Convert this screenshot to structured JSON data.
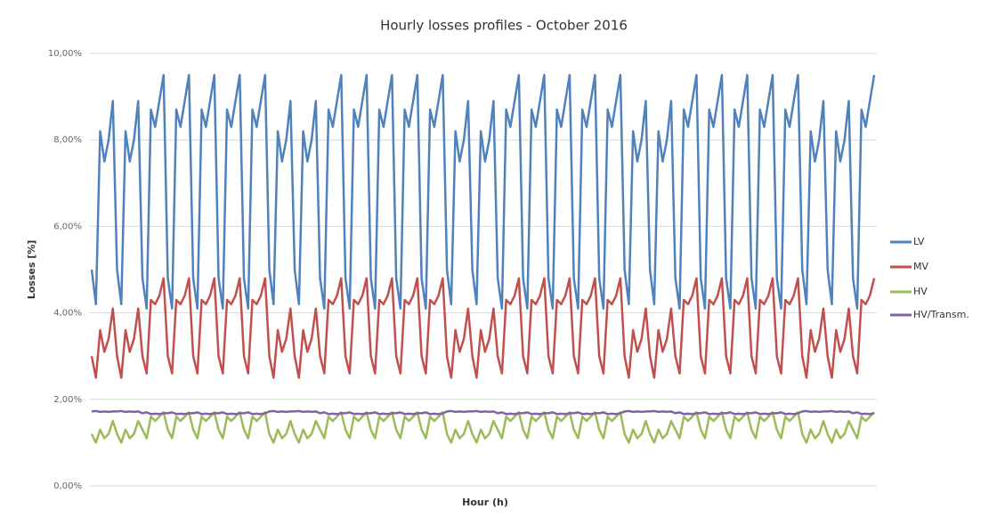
{
  "chart_data": {
    "type": "line",
    "title": "Hourly losses profiles - October 2016",
    "xlabel": "Hour (h)",
    "ylabel": "Losses [%]",
    "ylim": [
      0,
      10
    ],
    "yticks": [
      {
        "value": 0,
        "label": "0,00%"
      },
      {
        "value": 2,
        "label": "2,00%"
      },
      {
        "value": 4,
        "label": "4,00%"
      },
      {
        "value": 6,
        "label": "6,00%"
      },
      {
        "value": 8,
        "label": "8,00%"
      },
      {
        "value": 10,
        "label": "10,00%"
      }
    ],
    "grid": true,
    "legend": "right",
    "series": [
      {
        "name": "LV",
        "color": "#4f81bd",
        "values": [
          5.0,
          4.2,
          8.2,
          7.5,
          8.0,
          8.9,
          5.0,
          4.2,
          8.2,
          7.5,
          8.0,
          8.9,
          4.8,
          4.1,
          8.7,
          8.3,
          8.9,
          9.5,
          4.8,
          4.1,
          8.7,
          8.3,
          8.9,
          9.5,
          4.8,
          4.1,
          8.7,
          8.3,
          8.9,
          9.5,
          4.8,
          4.1,
          8.7,
          8.3,
          8.9,
          9.5,
          4.8,
          4.1,
          8.7,
          8.3,
          8.9,
          9.5,
          5.0,
          4.2,
          8.2,
          7.5,
          8.0,
          8.9,
          5.0,
          4.2,
          8.2,
          7.5,
          8.0,
          8.9,
          4.8,
          4.1,
          8.7,
          8.3,
          8.9,
          9.5,
          4.8,
          4.1,
          8.7,
          8.3,
          8.9,
          9.5,
          4.8,
          4.1,
          8.7,
          8.3,
          8.9,
          9.5,
          4.8,
          4.1,
          8.7,
          8.3,
          8.9,
          9.5,
          4.8,
          4.1,
          8.7,
          8.3,
          8.9,
          9.5,
          5.0,
          4.2,
          8.2,
          7.5,
          8.0,
          8.9,
          5.0,
          4.2,
          8.2,
          7.5,
          8.0,
          8.9,
          4.8,
          4.1,
          8.7,
          8.3,
          8.9,
          9.5,
          4.8,
          4.1,
          8.7,
          8.3,
          8.9,
          9.5,
          4.8,
          4.1,
          8.7,
          8.3,
          8.9,
          9.5,
          4.8,
          4.1,
          8.7,
          8.3,
          8.9,
          9.5,
          4.8,
          4.1,
          8.7,
          8.3,
          8.9,
          9.5,
          5.0,
          4.2,
          8.2,
          7.5,
          8.0,
          8.9,
          5.0,
          4.2,
          8.2,
          7.5,
          8.0,
          8.9,
          4.8,
          4.1,
          8.7,
          8.3,
          8.9,
          9.5,
          4.8,
          4.1,
          8.7,
          8.3,
          8.9,
          9.5,
          4.8,
          4.1,
          8.7,
          8.3,
          8.9,
          9.5,
          4.8,
          4.1,
          8.7,
          8.3,
          8.9,
          9.5,
          4.8,
          4.1,
          8.7,
          8.3,
          8.9,
          9.5,
          5.0,
          4.2,
          8.2,
          7.5,
          8.0,
          8.9,
          5.0,
          4.2,
          8.2,
          7.5,
          8.0,
          8.9,
          4.8,
          4.1,
          8.7,
          8.3,
          8.9,
          9.5
        ]
      },
      {
        "name": "MV",
        "color": "#c0504d",
        "values": [
          3.0,
          2.5,
          3.6,
          3.1,
          3.4,
          4.1,
          3.0,
          2.5,
          3.6,
          3.1,
          3.4,
          4.1,
          3.0,
          2.6,
          4.3,
          4.2,
          4.4,
          4.8,
          3.0,
          2.6,
          4.3,
          4.2,
          4.4,
          4.8,
          3.0,
          2.6,
          4.3,
          4.2,
          4.4,
          4.8,
          3.0,
          2.6,
          4.3,
          4.2,
          4.4,
          4.8,
          3.0,
          2.6,
          4.3,
          4.2,
          4.4,
          4.8,
          3.0,
          2.5,
          3.6,
          3.1,
          3.4,
          4.1,
          3.0,
          2.5,
          3.6,
          3.1,
          3.4,
          4.1,
          3.0,
          2.6,
          4.3,
          4.2,
          4.4,
          4.8,
          3.0,
          2.6,
          4.3,
          4.2,
          4.4,
          4.8,
          3.0,
          2.6,
          4.3,
          4.2,
          4.4,
          4.8,
          3.0,
          2.6,
          4.3,
          4.2,
          4.4,
          4.8,
          3.0,
          2.6,
          4.3,
          4.2,
          4.4,
          4.8,
          3.0,
          2.5,
          3.6,
          3.1,
          3.4,
          4.1,
          3.0,
          2.5,
          3.6,
          3.1,
          3.4,
          4.1,
          3.0,
          2.6,
          4.3,
          4.2,
          4.4,
          4.8,
          3.0,
          2.6,
          4.3,
          4.2,
          4.4,
          4.8,
          3.0,
          2.6,
          4.3,
          4.2,
          4.4,
          4.8,
          3.0,
          2.6,
          4.3,
          4.2,
          4.4,
          4.8,
          3.0,
          2.6,
          4.3,
          4.2,
          4.4,
          4.8,
          3.0,
          2.5,
          3.6,
          3.1,
          3.4,
          4.1,
          3.0,
          2.5,
          3.6,
          3.1,
          3.4,
          4.1,
          3.0,
          2.6,
          4.3,
          4.2,
          4.4,
          4.8,
          3.0,
          2.6,
          4.3,
          4.2,
          4.4,
          4.8,
          3.0,
          2.6,
          4.3,
          4.2,
          4.4,
          4.8,
          3.0,
          2.6,
          4.3,
          4.2,
          4.4,
          4.8,
          3.0,
          2.6,
          4.3,
          4.2,
          4.4,
          4.8,
          3.0,
          2.5,
          3.6,
          3.1,
          3.4,
          4.1,
          3.0,
          2.5,
          3.6,
          3.1,
          3.4,
          4.1,
          3.0,
          2.6,
          4.3,
          4.2,
          4.4,
          4.8
        ]
      },
      {
        "name": "HV",
        "color": "#9bbb59",
        "values": [
          1.2,
          1.0,
          1.3,
          1.1,
          1.2,
          1.5,
          1.2,
          1.0,
          1.3,
          1.1,
          1.2,
          1.5,
          1.3,
          1.1,
          1.6,
          1.5,
          1.6,
          1.7,
          1.3,
          1.1,
          1.6,
          1.5,
          1.6,
          1.7,
          1.3,
          1.1,
          1.6,
          1.5,
          1.6,
          1.7,
          1.3,
          1.1,
          1.6,
          1.5,
          1.6,
          1.7,
          1.3,
          1.1,
          1.6,
          1.5,
          1.6,
          1.7,
          1.2,
          1.0,
          1.3,
          1.1,
          1.2,
          1.5,
          1.2,
          1.0,
          1.3,
          1.1,
          1.2,
          1.5,
          1.3,
          1.1,
          1.6,
          1.5,
          1.6,
          1.7,
          1.3,
          1.1,
          1.6,
          1.5,
          1.6,
          1.7,
          1.3,
          1.1,
          1.6,
          1.5,
          1.6,
          1.7,
          1.3,
          1.1,
          1.6,
          1.5,
          1.6,
          1.7,
          1.3,
          1.1,
          1.6,
          1.5,
          1.6,
          1.7,
          1.2,
          1.0,
          1.3,
          1.1,
          1.2,
          1.5,
          1.2,
          1.0,
          1.3,
          1.1,
          1.2,
          1.5,
          1.3,
          1.1,
          1.6,
          1.5,
          1.6,
          1.7,
          1.3,
          1.1,
          1.6,
          1.5,
          1.6,
          1.7,
          1.3,
          1.1,
          1.6,
          1.5,
          1.6,
          1.7,
          1.3,
          1.1,
          1.6,
          1.5,
          1.6,
          1.7,
          1.3,
          1.1,
          1.6,
          1.5,
          1.6,
          1.7,
          1.2,
          1.0,
          1.3,
          1.1,
          1.2,
          1.5,
          1.2,
          1.0,
          1.3,
          1.1,
          1.2,
          1.5,
          1.3,
          1.1,
          1.6,
          1.5,
          1.6,
          1.7,
          1.3,
          1.1,
          1.6,
          1.5,
          1.6,
          1.7,
          1.3,
          1.1,
          1.6,
          1.5,
          1.6,
          1.7,
          1.3,
          1.1,
          1.6,
          1.5,
          1.6,
          1.7,
          1.3,
          1.1,
          1.6,
          1.5,
          1.6,
          1.7,
          1.2,
          1.0,
          1.3,
          1.1,
          1.2,
          1.5,
          1.2,
          1.0,
          1.3,
          1.1,
          1.2,
          1.5,
          1.3,
          1.1,
          1.6,
          1.5,
          1.6,
          1.7
        ]
      },
      {
        "name": "HV/Transm.",
        "color": "#8064a2",
        "values": [
          1.72,
          1.73,
          1.71,
          1.72,
          1.71,
          1.72,
          1.72,
          1.73,
          1.71,
          1.72,
          1.71,
          1.72,
          1.68,
          1.7,
          1.66,
          1.67,
          1.66,
          1.68,
          1.68,
          1.7,
          1.66,
          1.67,
          1.66,
          1.68,
          1.68,
          1.7,
          1.66,
          1.67,
          1.66,
          1.68,
          1.68,
          1.7,
          1.66,
          1.67,
          1.66,
          1.68,
          1.68,
          1.7,
          1.66,
          1.67,
          1.66,
          1.68,
          1.72,
          1.73,
          1.71,
          1.72,
          1.71,
          1.72,
          1.72,
          1.73,
          1.71,
          1.72,
          1.71,
          1.72,
          1.68,
          1.7,
          1.66,
          1.67,
          1.66,
          1.68,
          1.68,
          1.7,
          1.66,
          1.67,
          1.66,
          1.68,
          1.68,
          1.7,
          1.66,
          1.67,
          1.66,
          1.68,
          1.68,
          1.7,
          1.66,
          1.67,
          1.66,
          1.68,
          1.68,
          1.7,
          1.66,
          1.67,
          1.66,
          1.68,
          1.72,
          1.73,
          1.71,
          1.72,
          1.71,
          1.72,
          1.72,
          1.73,
          1.71,
          1.72,
          1.71,
          1.72,
          1.68,
          1.7,
          1.66,
          1.67,
          1.66,
          1.68,
          1.68,
          1.7,
          1.66,
          1.67,
          1.66,
          1.68,
          1.68,
          1.7,
          1.66,
          1.67,
          1.66,
          1.68,
          1.68,
          1.7,
          1.66,
          1.67,
          1.66,
          1.68,
          1.68,
          1.7,
          1.66,
          1.67,
          1.66,
          1.68,
          1.72,
          1.73,
          1.71,
          1.72,
          1.71,
          1.72,
          1.72,
          1.73,
          1.71,
          1.72,
          1.71,
          1.72,
          1.68,
          1.7,
          1.66,
          1.67,
          1.66,
          1.68,
          1.68,
          1.7,
          1.66,
          1.67,
          1.66,
          1.68,
          1.68,
          1.7,
          1.66,
          1.67,
          1.66,
          1.68,
          1.68,
          1.7,
          1.66,
          1.67,
          1.66,
          1.68,
          1.68,
          1.7,
          1.66,
          1.67,
          1.66,
          1.68,
          1.72,
          1.73,
          1.71,
          1.72,
          1.71,
          1.72,
          1.72,
          1.73,
          1.71,
          1.72,
          1.71,
          1.72,
          1.68,
          1.7,
          1.66,
          1.67,
          1.66,
          1.68
        ]
      }
    ]
  }
}
